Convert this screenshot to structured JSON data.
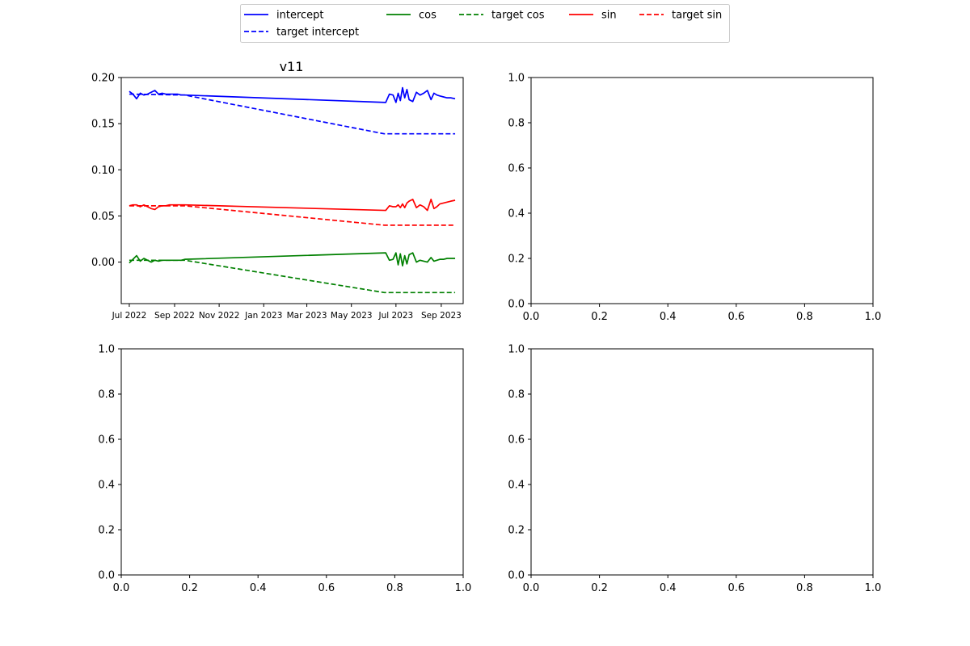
{
  "legend": {
    "entries": [
      {
        "label": "intercept",
        "color": "#0000ff",
        "style": "solid"
      },
      {
        "label": "target intercept",
        "color": "#0000ff",
        "style": "dashed"
      },
      {
        "label": "cos",
        "color": "#008000",
        "style": "solid"
      },
      {
        "label": "target cos",
        "color": "#008000",
        "style": "dashed"
      },
      {
        "label": "sin",
        "color": "#ff0000",
        "style": "solid"
      },
      {
        "label": "target sin",
        "color": "#ff0000",
        "style": "dashed"
      }
    ]
  },
  "chart_data": [
    {
      "type": "line",
      "title": "v11",
      "xlabel": "",
      "ylabel": "",
      "x_axis": "date",
      "xlim": [
        "2022-06-20",
        "2023-10-01"
      ],
      "ylim": [
        -0.045,
        0.2
      ],
      "xticks": [
        {
          "date": "2022-07-01",
          "label": "Jul 2022"
        },
        {
          "date": "2022-09-01",
          "label": "Sep 2022"
        },
        {
          "date": "2022-11-01",
          "label": "Nov 2022"
        },
        {
          "date": "2023-01-01",
          "label": "Jan 2023"
        },
        {
          "date": "2023-03-01",
          "label": "Mar 2023"
        },
        {
          "date": "2023-05-01",
          "label": "May 2023"
        },
        {
          "date": "2023-07-01",
          "label": "Jul 2023"
        },
        {
          "date": "2023-09-01",
          "label": "Sep 2023"
        }
      ],
      "yticks": [
        "0.20",
        "0.15",
        "0.10",
        "0.05",
        "0.00"
      ],
      "ytick_values": [
        0.2,
        0.15,
        0.1,
        0.05,
        0.0
      ],
      "grid": false,
      "series": [
        {
          "name": "intercept",
          "color": "#0000ff",
          "style": "solid",
          "x": [
            "2022-07-01",
            "2022-07-06",
            "2022-07-11",
            "2022-07-16",
            "2022-07-21",
            "2022-07-26",
            "2022-07-31",
            "2022-08-05",
            "2022-08-10",
            "2022-08-15",
            "2022-08-20",
            "2022-08-25",
            "2022-08-30",
            "2022-09-05",
            "2022-09-10",
            "2022-09-15",
            "2023-06-17",
            "2023-06-22",
            "2023-06-27",
            "2023-07-01",
            "2023-07-04",
            "2023-07-07",
            "2023-07-10",
            "2023-07-13",
            "2023-07-16",
            "2023-07-19",
            "2023-07-24",
            "2023-07-29",
            "2023-08-03",
            "2023-08-08",
            "2023-08-13",
            "2023-08-18",
            "2023-08-22",
            "2023-08-26",
            "2023-08-30",
            "2023-09-04",
            "2023-09-09",
            "2023-09-14",
            "2023-09-20"
          ],
          "y": [
            0.185,
            0.182,
            0.177,
            0.183,
            0.181,
            0.182,
            0.184,
            0.186,
            0.182,
            0.183,
            0.182,
            0.182,
            0.182,
            0.182,
            0.181,
            0.181,
            0.173,
            0.182,
            0.181,
            0.173,
            0.183,
            0.175,
            0.189,
            0.178,
            0.187,
            0.176,
            0.174,
            0.184,
            0.181,
            0.183,
            0.186,
            0.176,
            0.183,
            0.181,
            0.18,
            0.179,
            0.178,
            0.178,
            0.177
          ]
        },
        {
          "name": "target intercept",
          "color": "#0000ff",
          "style": "dashed",
          "x": [
            "2022-07-01",
            "2022-09-15",
            "2023-06-15",
            "2023-09-20"
          ],
          "y": [
            0.182,
            0.181,
            0.139,
            0.139
          ]
        },
        {
          "name": "cos",
          "color": "#008000",
          "style": "solid",
          "x": [
            "2022-07-01",
            "2022-07-06",
            "2022-07-11",
            "2022-07-16",
            "2022-07-21",
            "2022-07-26",
            "2022-07-31",
            "2022-08-05",
            "2022-08-10",
            "2022-08-15",
            "2022-08-20",
            "2022-08-25",
            "2022-08-30",
            "2022-09-05",
            "2022-09-10",
            "2022-09-15",
            "2023-06-17",
            "2023-06-22",
            "2023-06-27",
            "2023-07-01",
            "2023-07-04",
            "2023-07-07",
            "2023-07-10",
            "2023-07-13",
            "2023-07-16",
            "2023-07-19",
            "2023-07-24",
            "2023-07-29",
            "2023-08-03",
            "2023-08-08",
            "2023-08-13",
            "2023-08-18",
            "2023-08-22",
            "2023-08-26",
            "2023-08-30",
            "2023-09-04",
            "2023-09-09",
            "2023-09-14",
            "2023-09-20"
          ],
          "y": [
            -0.001,
            0.003,
            0.007,
            0.001,
            0.004,
            0.002,
            0.0,
            0.002,
            0.001,
            0.002,
            0.002,
            0.002,
            0.002,
            0.002,
            0.002,
            0.003,
            0.01,
            0.002,
            0.003,
            0.01,
            -0.003,
            0.009,
            -0.004,
            0.007,
            -0.002,
            0.008,
            0.01,
            0.0,
            0.002,
            0.001,
            0.0,
            0.005,
            0.001,
            0.002,
            0.003,
            0.003,
            0.004,
            0.004,
            0.004
          ]
        },
        {
          "name": "target cos",
          "color": "#008000",
          "style": "dashed",
          "x": [
            "2022-07-01",
            "2022-09-15",
            "2023-06-15",
            "2023-09-20"
          ],
          "y": [
            0.002,
            0.002,
            -0.033,
            -0.033
          ]
        },
        {
          "name": "sin",
          "color": "#ff0000",
          "style": "solid",
          "x": [
            "2022-07-01",
            "2022-07-06",
            "2022-07-11",
            "2022-07-16",
            "2022-07-21",
            "2022-07-26",
            "2022-07-31",
            "2022-08-05",
            "2022-08-10",
            "2022-08-15",
            "2022-08-20",
            "2022-08-25",
            "2022-08-30",
            "2022-09-05",
            "2022-09-10",
            "2022-09-15",
            "2023-06-17",
            "2023-06-22",
            "2023-06-27",
            "2023-07-01",
            "2023-07-04",
            "2023-07-07",
            "2023-07-10",
            "2023-07-13",
            "2023-07-16",
            "2023-07-19",
            "2023-07-24",
            "2023-07-29",
            "2023-08-03",
            "2023-08-08",
            "2023-08-13",
            "2023-08-18",
            "2023-08-22",
            "2023-08-26",
            "2023-08-30",
            "2023-09-04",
            "2023-09-09",
            "2023-09-14",
            "2023-09-20"
          ],
          "y": [
            0.061,
            0.062,
            0.062,
            0.06,
            0.062,
            0.06,
            0.058,
            0.057,
            0.06,
            0.061,
            0.061,
            0.062,
            0.062,
            0.062,
            0.062,
            0.062,
            0.056,
            0.061,
            0.06,
            0.06,
            0.062,
            0.059,
            0.063,
            0.059,
            0.064,
            0.066,
            0.068,
            0.059,
            0.062,
            0.06,
            0.056,
            0.068,
            0.058,
            0.06,
            0.063,
            0.064,
            0.065,
            0.066,
            0.067
          ]
        },
        {
          "name": "target sin",
          "color": "#ff0000",
          "style": "dashed",
          "x": [
            "2022-07-01",
            "2022-09-15",
            "2023-06-15",
            "2023-09-20"
          ],
          "y": [
            0.061,
            0.061,
            0.04,
            0.04
          ]
        }
      ]
    },
    {
      "type": "line",
      "title": "",
      "xlabel": "",
      "ylabel": "",
      "xlim": [
        0,
        1
      ],
      "ylim": [
        0,
        1
      ],
      "xticks": [
        "0.0",
        "0.2",
        "0.4",
        "0.6",
        "0.8",
        "1.0"
      ],
      "yticks": [
        "0.0",
        "0.2",
        "0.4",
        "0.6",
        "0.8",
        "1.0"
      ],
      "series": []
    },
    {
      "type": "line",
      "title": "",
      "xlabel": "",
      "ylabel": "",
      "xlim": [
        0,
        1
      ],
      "ylim": [
        0,
        1
      ],
      "xticks": [
        "0.0",
        "0.2",
        "0.4",
        "0.6",
        "0.8",
        "1.0"
      ],
      "yticks": [
        "0.0",
        "0.2",
        "0.4",
        "0.6",
        "0.8",
        "1.0"
      ],
      "series": []
    },
    {
      "type": "line",
      "title": "",
      "xlabel": "",
      "ylabel": "",
      "xlim": [
        0,
        1
      ],
      "ylim": [
        0,
        1
      ],
      "xticks": [
        "0.0",
        "0.2",
        "0.4",
        "0.6",
        "0.8",
        "1.0"
      ],
      "yticks": [
        "0.0",
        "0.2",
        "0.4",
        "0.6",
        "0.8",
        "1.0"
      ],
      "series": []
    }
  ]
}
